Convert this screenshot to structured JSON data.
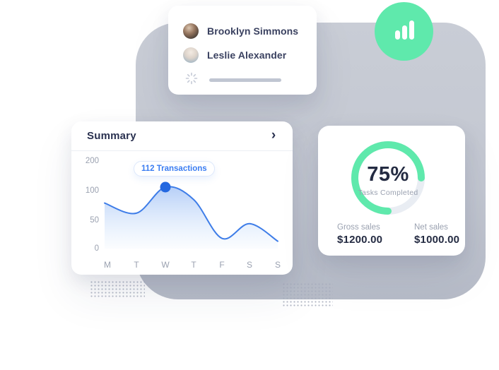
{
  "users_card": {
    "users": [
      {
        "name": "Brooklyn Simmons"
      },
      {
        "name": "Leslie Alexander"
      }
    ]
  },
  "badge": {
    "icon": "bar-chart-icon",
    "color": "#5fe9ac"
  },
  "summary_card": {
    "title": "Summary",
    "chevron": "›",
    "tooltip_label": "112 Transactions"
  },
  "donut_card": {
    "percent_text": "75%",
    "caption": "Tasks Completed",
    "metrics": [
      {
        "label": "Gross sales",
        "value": "$1200.00"
      },
      {
        "label": "Net sales",
        "value": "$1000.00"
      }
    ]
  },
  "chart_data": [
    {
      "type": "area",
      "title": "Summary",
      "categories": [
        "M",
        "T",
        "W",
        "T",
        "F",
        "S",
        "S"
      ],
      "values": [
        79,
        62,
        112,
        85,
        18,
        44,
        13
      ],
      "y_ticks": [
        200,
        100,
        50,
        0
      ],
      "highlight": {
        "category": "W",
        "value": 112,
        "label": "112 Transactions"
      },
      "line_color": "#3e7de8",
      "dot_color": "#2468e0",
      "grid": false,
      "legend": false
    },
    {
      "type": "donut",
      "percent": 75,
      "label": "Tasks Completed",
      "progress_color": "#5fe9ac",
      "track_color": "#e9edf3"
    }
  ],
  "colors": {
    "accent_green": "#5fe9ac",
    "accent_blue": "#3e7de8",
    "navy_text": "#242b42",
    "gray_text": "#9aa1b0",
    "bg_shape": "#c6cad3"
  }
}
